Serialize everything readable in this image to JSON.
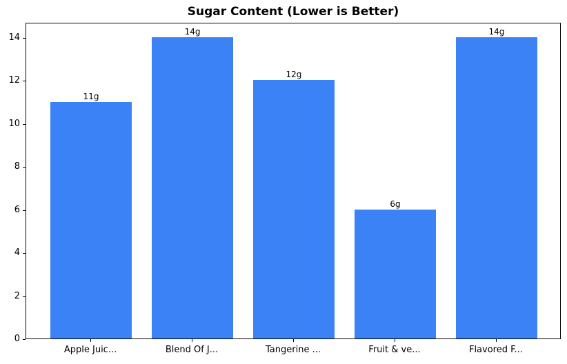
{
  "chart_data": {
    "type": "bar",
    "title": "Sugar Content (Lower is Better)",
    "categories": [
      "Apple Juic...",
      "Blend Of J...",
      "Tangerine ...",
      "Fruit & ve...",
      "Flavored F..."
    ],
    "values": [
      11,
      14,
      12,
      6,
      14
    ],
    "value_labels": [
      "11g",
      "14g",
      "12g",
      "6g",
      "14g"
    ],
    "value_unit": "g",
    "yticks": [
      0,
      2,
      4,
      6,
      8,
      10,
      12,
      14
    ],
    "ylim": [
      0,
      14.7
    ],
    "xlim": [
      -0.64,
      4.64
    ],
    "bar_width": 0.8,
    "bar_color": "#3b82f6",
    "axis_color": "#000000",
    "text_color": "#000000",
    "background_color": "#ffffff",
    "grid": false,
    "legend": "none",
    "xlabel": "",
    "ylabel": ""
  }
}
